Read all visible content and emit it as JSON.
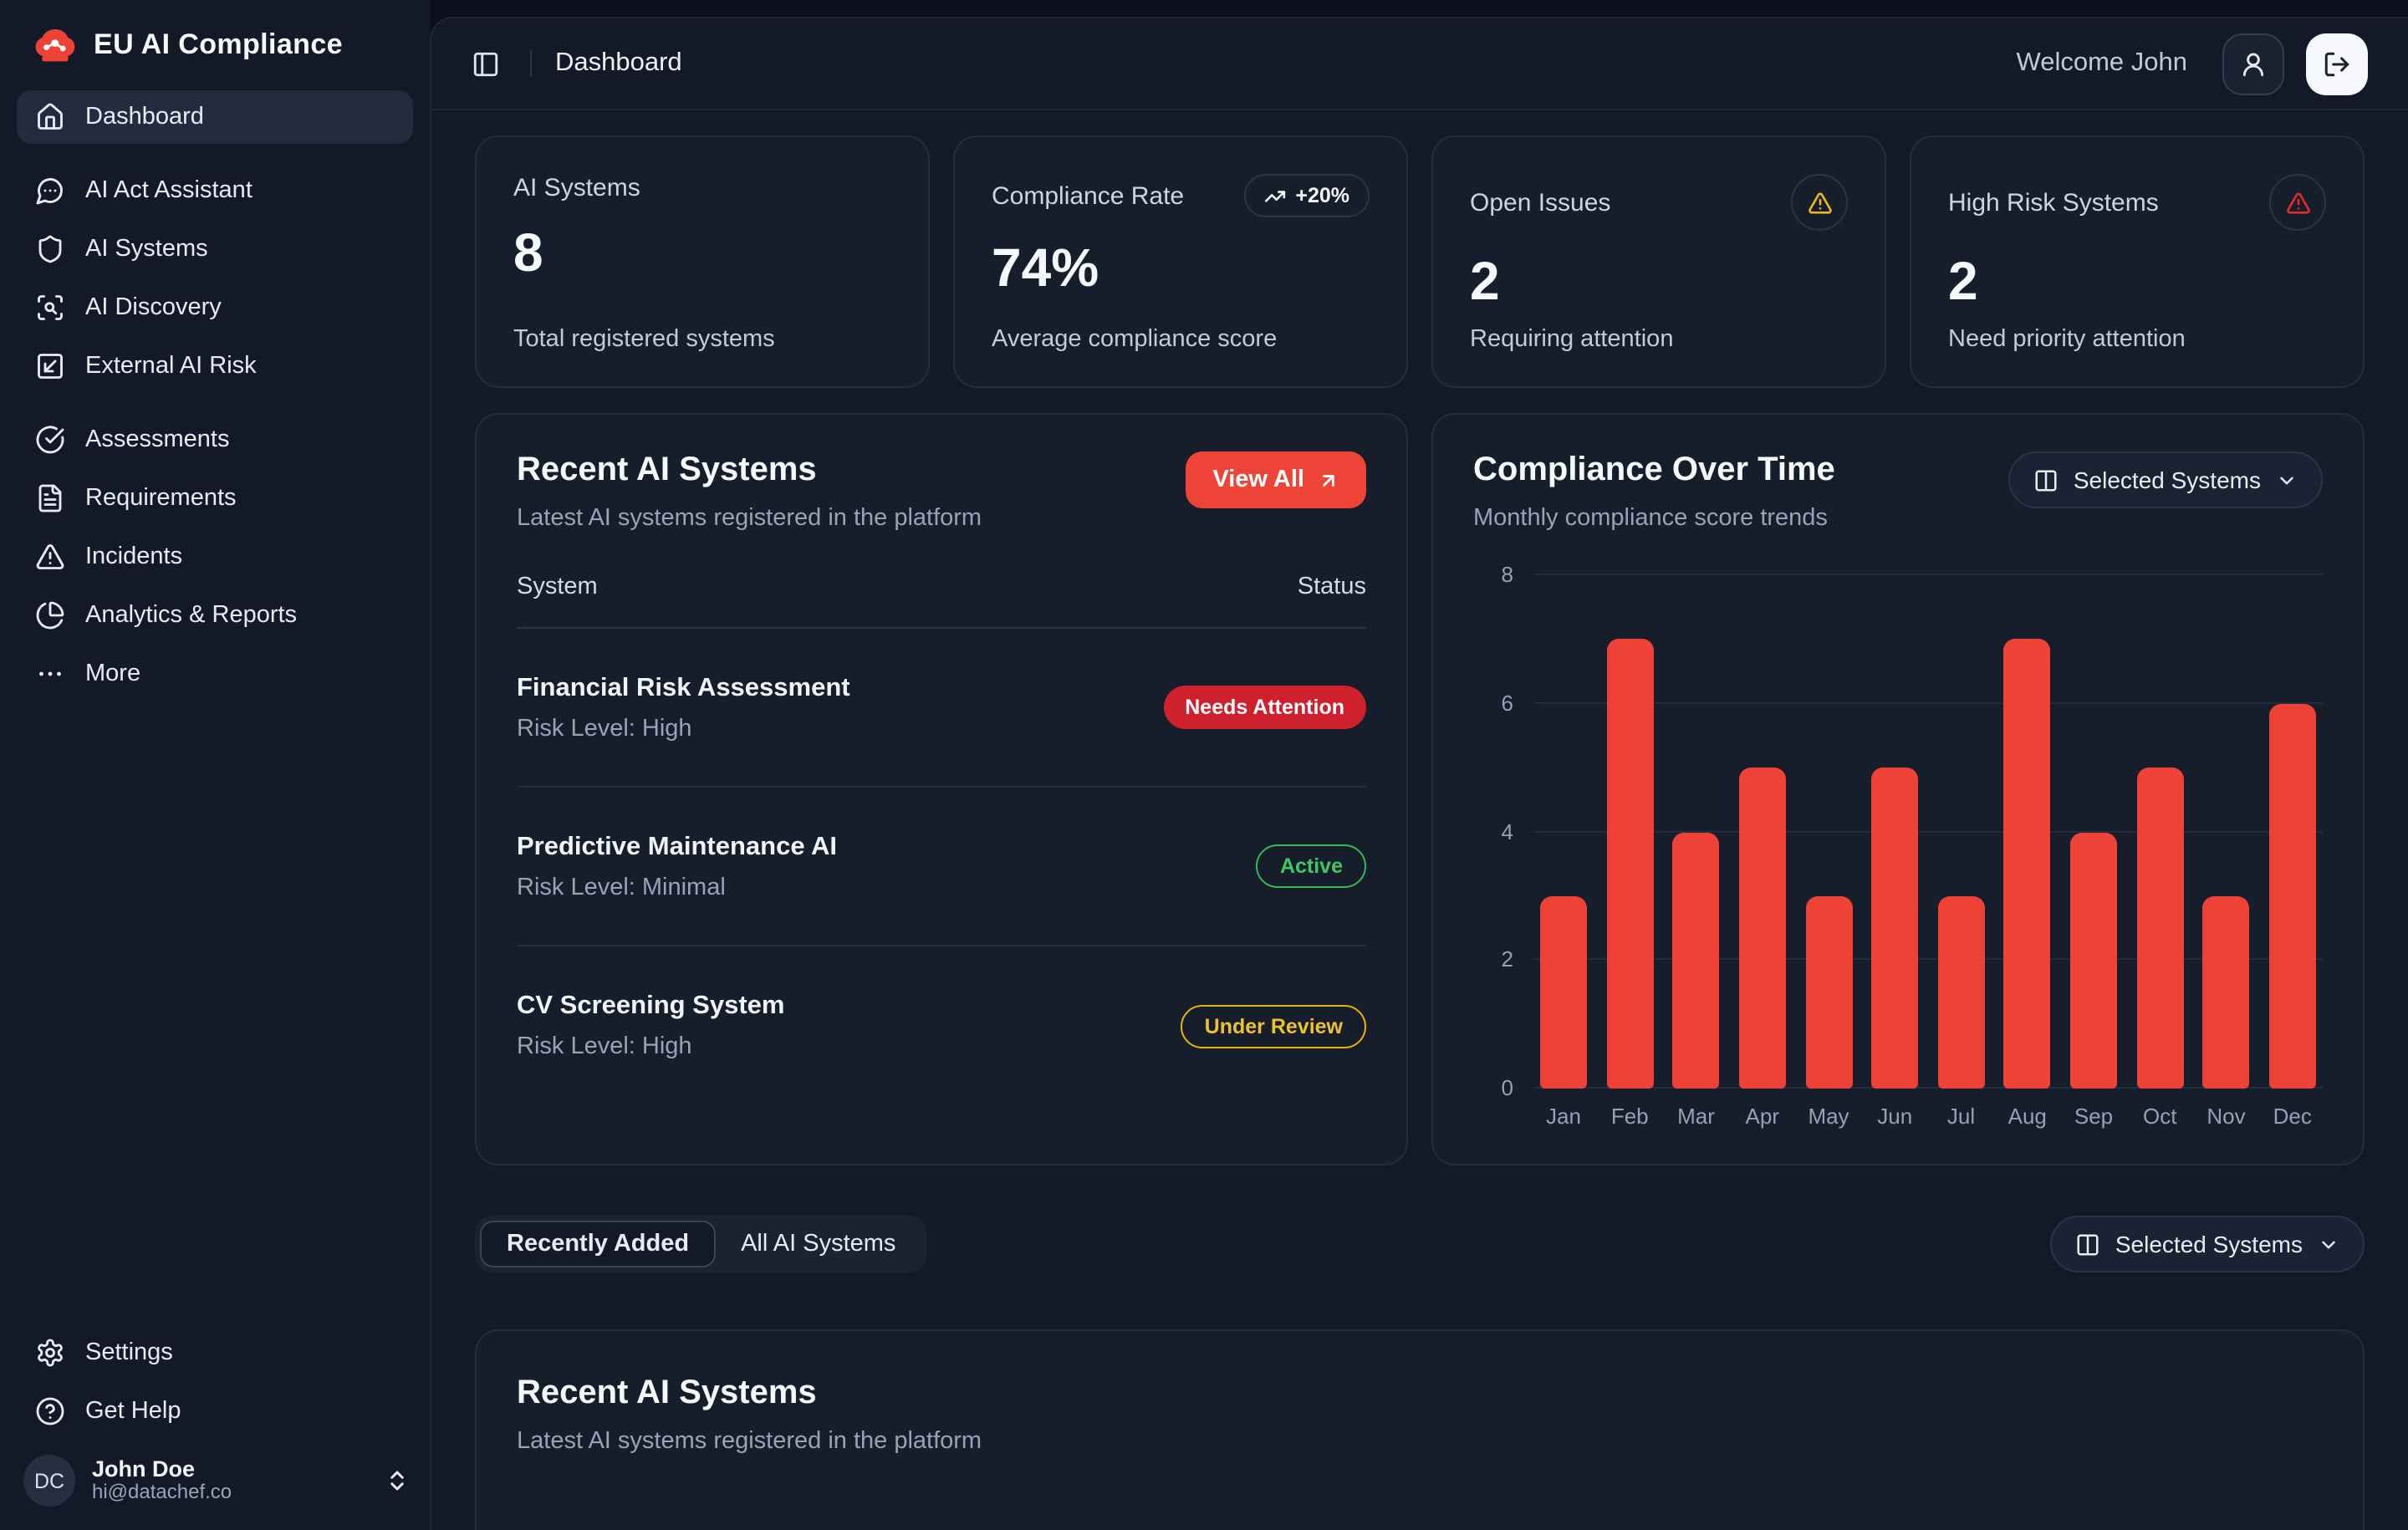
{
  "app": {
    "brand": "EU AI Compliance"
  },
  "sidebar": {
    "items": [
      {
        "label": "Dashboard",
        "icon": "home-icon",
        "active": true
      },
      {
        "label": "AI Act Assistant",
        "icon": "chat-icon"
      },
      {
        "label": "AI Systems",
        "icon": "shield-icon"
      },
      {
        "label": "AI Discovery",
        "icon": "scan-search-icon"
      },
      {
        "label": "External AI Risk",
        "icon": "square-arrow-icon"
      },
      {
        "label": "Assessments",
        "icon": "check-circle-icon"
      },
      {
        "label": "Requirements",
        "icon": "file-text-icon"
      },
      {
        "label": "Incidents",
        "icon": "alert-triangle-icon"
      },
      {
        "label": "Analytics & Reports",
        "icon": "pie-chart-icon"
      },
      {
        "label": "More",
        "icon": "ellipsis-icon"
      }
    ],
    "footer_items": [
      {
        "label": "Settings",
        "icon": "gear-icon"
      },
      {
        "label": "Get Help",
        "icon": "help-circle-icon"
      }
    ],
    "user": {
      "initials": "DC",
      "name": "John Doe",
      "email": "hi@datachef.co"
    }
  },
  "topbar": {
    "breadcrumb": "Dashboard",
    "welcome": "Welcome John"
  },
  "stats": [
    {
      "label": "AI Systems",
      "value": "8",
      "caption": "Total registered systems"
    },
    {
      "label": "Compliance Rate",
      "value": "74%",
      "caption": "Average compliance score",
      "badge": "+20%"
    },
    {
      "label": "Open Issues",
      "value": "2",
      "caption": "Requiring attention",
      "icon": "warning-yellow"
    },
    {
      "label": "High Risk Systems",
      "value": "2",
      "caption": "Need priority attention",
      "icon": "warning-red"
    }
  ],
  "recent_systems": {
    "title": "Recent AI Systems",
    "subtitle": "Latest AI systems registered in the platform",
    "view_all_label": "View All",
    "columns": {
      "system": "System",
      "status": "Status"
    },
    "rows": [
      {
        "name": "Financial Risk Assessment",
        "risk": "Risk Level: High",
        "status": "Needs Attention",
        "status_type": "danger"
      },
      {
        "name": "Predictive Maintenance AI",
        "risk": "Risk Level: Minimal",
        "status": "Active",
        "status_type": "success"
      },
      {
        "name": "CV Screening System",
        "risk": "Risk Level: High",
        "status": "Under Review",
        "status_type": "warning"
      }
    ]
  },
  "chart_card": {
    "title": "Compliance Over Time",
    "subtitle": "Monthly compliance score trends",
    "dropdown_label": "Selected Systems"
  },
  "chart_data": {
    "type": "bar",
    "title": "Compliance Over Time",
    "subtitle": "Monthly compliance score trends",
    "categories": [
      "Jan",
      "Feb",
      "Mar",
      "Apr",
      "May",
      "Jun",
      "Jul",
      "Aug",
      "Sep",
      "Oct",
      "Nov",
      "Dec"
    ],
    "values": [
      3,
      7,
      4,
      5,
      3,
      5,
      3,
      7,
      4,
      5,
      3,
      6
    ],
    "ylim": [
      0,
      8
    ],
    "yticks": [
      0,
      2,
      4,
      6,
      8
    ],
    "bar_color": "#ee4237",
    "grid": true,
    "legend": false
  },
  "tabs": [
    {
      "label": "Recently Added",
      "active": true
    },
    {
      "label": "All AI Systems",
      "active": false
    }
  ],
  "filter_dropdown_label": "Selected Systems",
  "bottom_card": {
    "title": "Recent AI Systems",
    "subtitle": "Latest AI systems registered in the platform"
  },
  "colors": {
    "accent_red": "#ee4237",
    "badge_danger_bg": "#ce202d",
    "success_green": "#34b959",
    "warning_yellow": "#e9b308",
    "background": "#0b101c",
    "panel": "#131927",
    "card": "#161d2b"
  }
}
